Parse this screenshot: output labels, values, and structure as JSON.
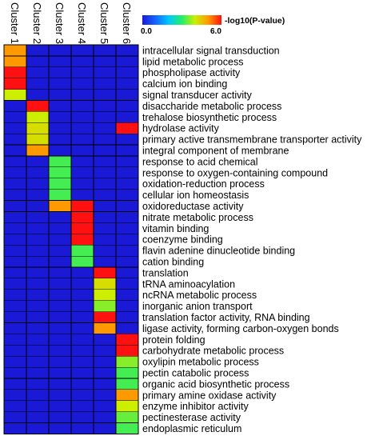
{
  "chart_data": {
    "type": "heatmap",
    "columns": [
      "Cluster 1",
      "Cluster 2",
      "Cluster 3",
      "Cluster 4",
      "Cluster 5",
      "Cluster 6"
    ],
    "rows": [
      "intracellular signal transduction",
      "lipid metabolic process",
      "phospholipase activity",
      "calcium ion binding",
      "signal transducer activity",
      "disaccharide metabolic process",
      "trehalose biosynthetic process",
      "hydrolase activity",
      "primary active transmembrane transporter activity",
      "integral component of membrane",
      "response to acid chemical",
      "response to oxygen-containing compound",
      "oxidation-reduction process",
      "cellular ion homeostasis",
      "oxidoreductase activity",
      "nitrate metabolic process",
      "vitamin binding",
      "coenzyme binding",
      "flavin adenine dinucleotide binding",
      "cation binding",
      "translation",
      "tRNA aminoacylation",
      "ncRNA metabolic process",
      "inorganic anion transport",
      "translation factor activity, RNA binding",
      "ligase activity, forming carbon-oxygen bonds",
      "protein folding",
      "carbohydrate metabolic process",
      "oxylipin metabolic process",
      "pectin catabolic process",
      "organic acid biosynthetic process",
      "primary amine oxidase activity",
      "enzyme inhibitor activity",
      "pectinesterase activity",
      "endoplasmic reticulum"
    ],
    "values": [
      [
        5.0,
        0,
        0,
        0,
        0,
        0
      ],
      [
        5.0,
        0,
        0,
        0,
        0,
        0
      ],
      [
        6.0,
        0,
        0,
        0,
        0,
        0
      ],
      [
        6.0,
        0,
        0,
        0,
        0,
        0
      ],
      [
        4.0,
        0,
        0,
        0,
        0,
        0
      ],
      [
        0,
        6.0,
        0,
        0,
        0,
        0
      ],
      [
        0,
        4.0,
        0,
        0,
        0,
        0
      ],
      [
        0,
        4.2,
        0,
        0,
        0,
        6.0
      ],
      [
        0,
        4.2,
        0,
        0,
        0,
        0
      ],
      [
        0,
        5.0,
        0,
        0,
        0,
        0
      ],
      [
        0,
        0,
        3.2,
        0,
        0,
        0
      ],
      [
        0,
        0,
        3.2,
        0,
        0,
        0
      ],
      [
        0,
        0,
        3.2,
        0,
        0,
        0
      ],
      [
        0,
        0,
        3.2,
        0,
        0,
        0
      ],
      [
        0,
        0,
        5.0,
        6.0,
        0,
        0
      ],
      [
        0,
        0,
        0,
        6.0,
        0,
        0
      ],
      [
        0,
        0,
        0,
        6.0,
        0,
        0
      ],
      [
        0,
        0,
        0,
        6.0,
        0,
        0
      ],
      [
        0,
        0,
        0,
        3.2,
        0,
        0
      ],
      [
        0,
        0,
        0,
        3.2,
        0,
        0
      ],
      [
        0,
        0,
        0,
        0,
        6.0,
        0
      ],
      [
        0,
        0,
        0,
        0,
        4.2,
        0
      ],
      [
        0,
        0,
        0,
        0,
        4.0,
        0
      ],
      [
        0,
        0,
        0,
        0,
        3.6,
        0
      ],
      [
        0,
        0,
        0,
        0,
        6.0,
        0
      ],
      [
        0,
        0,
        0,
        0,
        5.0,
        0
      ],
      [
        0,
        0,
        0,
        0,
        0,
        6.0
      ],
      [
        0,
        0,
        0,
        0,
        0,
        6.0
      ],
      [
        0,
        0,
        0,
        0,
        0,
        3.6
      ],
      [
        0,
        0,
        0,
        0,
        0,
        3.2
      ],
      [
        0,
        0,
        0,
        0,
        0,
        3.2
      ],
      [
        0,
        0,
        0,
        0,
        0,
        5.0
      ],
      [
        0,
        0,
        0,
        0,
        0,
        4.0
      ],
      [
        0,
        0,
        0,
        0,
        0,
        3.4
      ],
      [
        0,
        0,
        0,
        0,
        0,
        3.2
      ]
    ],
    "colorbar": {
      "min_label": "0.0",
      "max_label": "6.0",
      "title": "-log10(P-value)",
      "range": [
        0,
        6
      ],
      "colors": [
        "#1a1ad6",
        "#1565ff",
        "#00c8ff",
        "#22ee66",
        "#ccee00",
        "#ff9900",
        "#ff1111"
      ]
    },
    "grid": true
  }
}
